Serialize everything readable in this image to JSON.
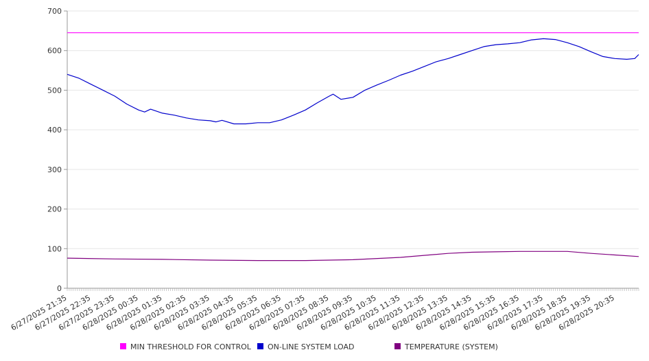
{
  "chart_data": {
    "type": "line",
    "title": "",
    "xlabel": "",
    "ylabel": "",
    "ylim": [
      0,
      700
    ],
    "yticks": [
      0,
      100,
      200,
      300,
      400,
      500,
      600,
      700
    ],
    "grid": true,
    "legend_position": "bottom",
    "x_ticks": [
      "6/27/2025 21:35",
      "6/27/2025 22:35",
      "6/27/2025 23:35",
      "6/28/2025 00:35",
      "6/28/2025 01:35",
      "6/28/2025 02:35",
      "6/28/2025 03:35",
      "6/28/2025 04:35",
      "6/28/2025 05:35",
      "6/28/2025 06:35",
      "6/28/2025 07:35",
      "6/28/2025 08:35",
      "6/28/2025 09:35",
      "6/28/2025 10:35",
      "6/28/2025 11:35",
      "6/28/2025 12:35",
      "6/28/2025 13:35",
      "6/28/2025 14:35",
      "6/28/2025 15:35",
      "6/28/2025 16:35",
      "6/28/2025 17:35",
      "6/28/2025 18:35",
      "6/28/2025 19:35",
      "6/28/2025 20:35"
    ],
    "x_range": [
      "6/27/2025 21:35",
      "6/28/2025 21:35"
    ],
    "series": [
      {
        "name": "MIN THRESHOLD FOR CONTROL",
        "color": "#ff00ff",
        "x": [
          "6/27/2025 21:35",
          "6/28/2025 21:35"
        ],
        "values": [
          645,
          645
        ]
      },
      {
        "name": "ON-LINE SYSTEM LOAD",
        "color": "#0000cc",
        "x": [
          "6/27/2025 21:35",
          "6/27/2025 22:05",
          "6/27/2025 22:35",
          "6/27/2025 23:05",
          "6/27/2025 23:35",
          "6/28/2025 00:05",
          "6/28/2025 00:35",
          "6/28/2025 00:50",
          "6/28/2025 01:05",
          "6/28/2025 01:35",
          "6/28/2025 02:05",
          "6/28/2025 02:35",
          "6/28/2025 03:05",
          "6/28/2025 03:35",
          "6/28/2025 03:50",
          "6/28/2025 04:05",
          "6/28/2025 04:35",
          "6/28/2025 05:05",
          "6/28/2025 05:35",
          "6/28/2025 06:05",
          "6/28/2025 06:35",
          "6/28/2025 07:05",
          "6/28/2025 07:35",
          "6/28/2025 08:05",
          "6/28/2025 08:35",
          "6/28/2025 08:45",
          "6/28/2025 09:05",
          "6/28/2025 09:35",
          "6/28/2025 10:05",
          "6/28/2025 10:35",
          "6/28/2025 11:05",
          "6/28/2025 11:35",
          "6/28/2025 12:05",
          "6/28/2025 12:35",
          "6/28/2025 13:05",
          "6/28/2025 13:35",
          "6/28/2025 14:05",
          "6/28/2025 14:35",
          "6/28/2025 15:05",
          "6/28/2025 15:35",
          "6/28/2025 16:05",
          "6/28/2025 16:35",
          "6/28/2025 17:05",
          "6/28/2025 17:35",
          "6/28/2025 18:05",
          "6/28/2025 18:35",
          "6/28/2025 19:05",
          "6/28/2025 19:35",
          "6/28/2025 20:05",
          "6/28/2025 20:35",
          "6/28/2025 21:05",
          "6/28/2025 21:25",
          "6/28/2025 21:35"
        ],
        "values": [
          540,
          530,
          515,
          500,
          485,
          465,
          450,
          445,
          452,
          442,
          437,
          430,
          425,
          423,
          420,
          424,
          415,
          415,
          418,
          418,
          425,
          437,
          450,
          468,
          485,
          490,
          477,
          482,
          500,
          513,
          525,
          538,
          548,
          560,
          572,
          580,
          590,
          600,
          610,
          615,
          617,
          620,
          627,
          630,
          628,
          620,
          610,
          597,
          585,
          580,
          578,
          580,
          590
        ]
      },
      {
        "name": "TEMPERATURE (SYSTEM)",
        "color": "#800080",
        "x": [
          "6/27/2025 21:35",
          "6/27/2025 23:35",
          "6/28/2025 01:35",
          "6/28/2025 03:35",
          "6/28/2025 05:35",
          "6/28/2025 07:35",
          "6/28/2025 09:35",
          "6/28/2025 11:35",
          "6/28/2025 13:35",
          "6/28/2025 14:35",
          "6/28/2025 15:35",
          "6/28/2025 16:35",
          "6/28/2025 18:35",
          "6/28/2025 19:35",
          "6/28/2025 20:35",
          "6/28/2025 21:35"
        ],
        "values": [
          76,
          74,
          73,
          71,
          70,
          70,
          72,
          78,
          88,
          91,
          92,
          93,
          93,
          88,
          84,
          80
        ]
      }
    ]
  }
}
